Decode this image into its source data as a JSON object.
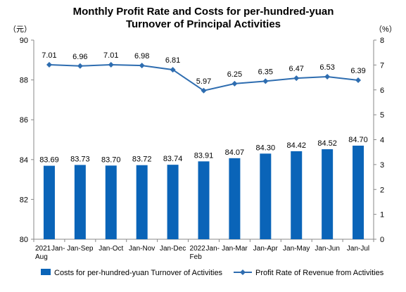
{
  "chart_data": {
    "type": "bar",
    "title": "Monthly Profit Rate and Costs for per-hundred-yuan Turnover of Principal Activities",
    "title_lines": [
      "Monthly Profit Rate and Costs for per-hundred-yuan",
      "Turnover of Principal Activities"
    ],
    "left_unit": "（元）",
    "right_unit": "（%）",
    "categories": [
      [
        "2021",
        "Jan-",
        "Aug"
      ],
      [
        "Jan-Sep"
      ],
      [
        "Jan-Oct"
      ],
      [
        "Jan-Nov"
      ],
      [
        "Jan-Dec"
      ],
      [
        "2022",
        "Jan-",
        "Feb"
      ],
      [
        "Jan-Mar"
      ],
      [
        "Jan-Apr"
      ],
      [
        "Jan-May"
      ],
      [
        "Jan-Jun"
      ],
      [
        "Jan-Jul"
      ]
    ],
    "y_left": {
      "min": 80,
      "max": 90,
      "step": 2,
      "ticks": [
        "80",
        "82",
        "84",
        "86",
        "88",
        "90"
      ]
    },
    "y_right": {
      "min": 0,
      "max": 8,
      "step": 1,
      "ticks": [
        "0",
        "1",
        "2",
        "3",
        "4",
        "5",
        "6",
        "7",
        "8"
      ]
    },
    "series": [
      {
        "name": "Costs for per-hundred-yuan Turnover of Activities",
        "kind": "bar",
        "axis": "left",
        "color": "#0a64b8",
        "values": [
          83.69,
          83.73,
          83.7,
          83.72,
          83.74,
          83.91,
          84.07,
          84.3,
          84.42,
          84.52,
          84.7
        ],
        "labels": [
          "83.69",
          "83.73",
          "83.70",
          "83.72",
          "83.74",
          "83.91",
          "84.07",
          "84.30",
          "84.42",
          "84.52",
          "84.70"
        ]
      },
      {
        "name": "Profit Rate of Revenue from Activities",
        "kind": "line",
        "axis": "right",
        "color": "#2e6db0",
        "values": [
          7.01,
          6.96,
          7.01,
          6.98,
          6.81,
          5.97,
          6.25,
          6.35,
          6.47,
          6.53,
          6.39
        ],
        "labels": [
          "7.01",
          "6.96",
          "7.01",
          "6.98",
          "6.81",
          "5.97",
          "6.25",
          "6.35",
          "6.47",
          "6.53",
          "6.39"
        ]
      }
    ],
    "legend_position": "bottom",
    "grid": false
  }
}
